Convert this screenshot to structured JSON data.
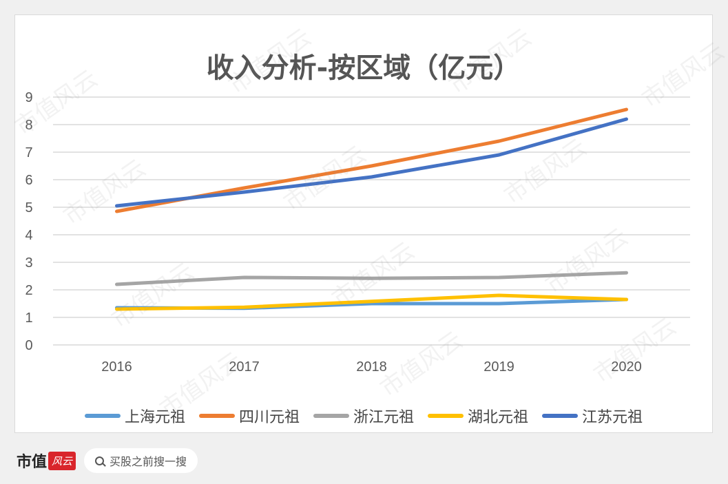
{
  "chart_data": {
    "type": "line",
    "title": "收入分析-按区域（亿元）",
    "categories": [
      "2016",
      "2017",
      "2018",
      "2019",
      "2020"
    ],
    "ylim": [
      0,
      9
    ],
    "yticks": [
      "0",
      "1",
      "2",
      "3",
      "4",
      "5",
      "6",
      "7",
      "8",
      "9"
    ],
    "grid": true,
    "legend_position": "bottom",
    "series": [
      {
        "name": "上海元祖",
        "color": "#5b9bd5",
        "values": [
          1.35,
          1.33,
          1.5,
          1.5,
          1.65
        ]
      },
      {
        "name": "四川元祖",
        "color": "#ed7d31",
        "values": [
          4.85,
          5.7,
          6.5,
          7.4,
          8.55
        ]
      },
      {
        "name": "浙江元祖",
        "color": "#a5a5a5",
        "values": [
          2.2,
          2.45,
          2.42,
          2.45,
          2.62
        ]
      },
      {
        "name": "湖北元祖",
        "color": "#ffc000",
        "values": [
          1.3,
          1.37,
          1.58,
          1.8,
          1.65
        ]
      },
      {
        "name": "江苏元祖",
        "color": "#4472c4",
        "values": [
          5.05,
          5.55,
          6.1,
          6.9,
          8.2
        ]
      }
    ]
  },
  "watermark": {
    "text": "市值风云"
  },
  "footer": {
    "brand": "市值",
    "brand_logo": "风云",
    "search_placeholder": "买股之前搜一搜"
  }
}
